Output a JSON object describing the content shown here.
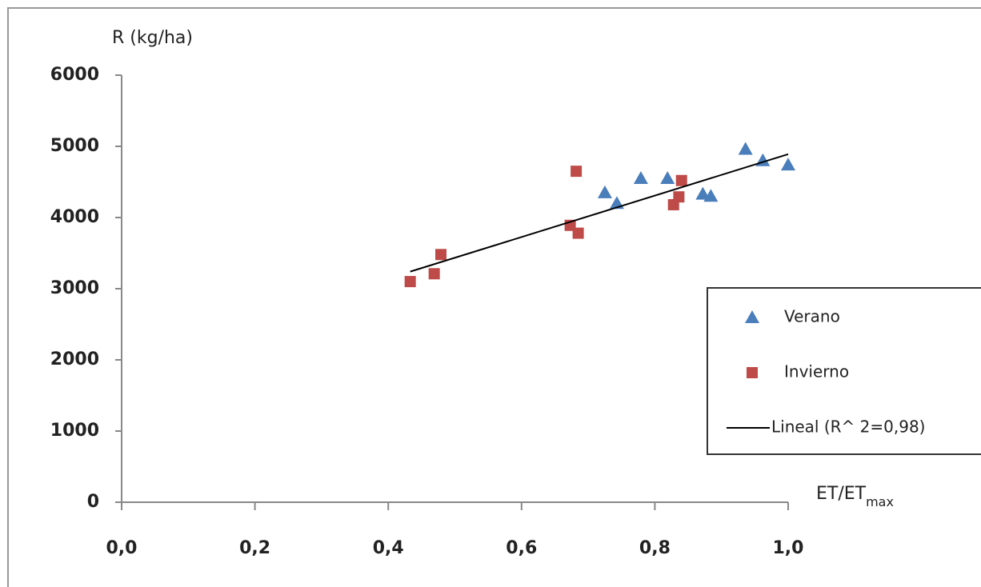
{
  "chart_data": {
    "type": "scatter",
    "y_label": "R (kg/ha)",
    "x_label": {
      "main": "ET/ET",
      "sub": "max"
    },
    "xlim": [
      0,
      1.0
    ],
    "ylim": [
      0,
      6000
    ],
    "xticks": [
      {
        "value": 0,
        "label": "0,0"
      },
      {
        "value": 0.2,
        "label": "0,2"
      },
      {
        "value": 0.4,
        "label": "0,4"
      },
      {
        "value": 0.6,
        "label": "0,6"
      },
      {
        "value": 0.8,
        "label": "0,8"
      },
      {
        "value": 1.0,
        "label": "1,0"
      }
    ],
    "yticks": [
      0,
      1000,
      2000,
      3000,
      4000,
      5000,
      6000
    ],
    "legend": "right",
    "series": [
      {
        "name": "Verano",
        "color": "#4a7ebb",
        "marker": "triangle",
        "x": [
          0.725,
          0.743,
          0.779,
          0.819,
          0.872,
          0.884,
          0.936,
          0.962,
          1.0
        ],
        "values": [
          4350,
          4200,
          4550,
          4550,
          4330,
          4300,
          4960,
          4800,
          4740
        ]
      },
      {
        "name": "Invierno",
        "color": "#be4b48",
        "marker": "square",
        "x": [
          0.433,
          0.469,
          0.479,
          0.673,
          0.682,
          0.685,
          0.828,
          0.836,
          0.84
        ],
        "values": [
          3100,
          3210,
          3480,
          3890,
          4650,
          3780,
          4180,
          4290,
          4520
        ]
      },
      {
        "name": "Lineal (R^ 2=0,98)",
        "color": "#000000",
        "marker": "line",
        "x": [
          0.433,
          1.0
        ],
        "values": [
          3240,
          4890
        ]
      }
    ]
  }
}
